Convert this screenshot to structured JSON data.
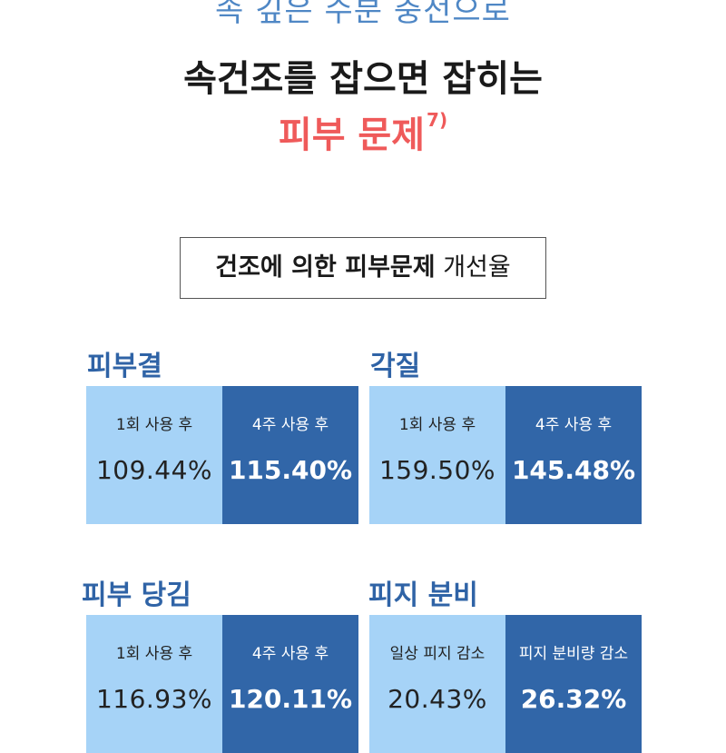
{
  "header": {
    "line1": "속 깊은 수분 충전으로",
    "line2": "속건조를 잡으면 잡히는",
    "line3": "피부 문제",
    "footnote": "7)"
  },
  "rate_box": {
    "bold_text": "건조에 의한 피부문제",
    "normal_text": "개선율"
  },
  "sections": [
    {
      "title": "피부결",
      "cells": [
        {
          "label": "1회 사용 후",
          "value": "109.44%"
        },
        {
          "label": "4주 사용 후",
          "value": "115.40%"
        }
      ]
    },
    {
      "title": "각질",
      "cells": [
        {
          "label": "1회 사용 후",
          "value": "159.50%"
        },
        {
          "label": "4주 사용 후",
          "value": "145.48%"
        }
      ]
    },
    {
      "title": "피부 당김",
      "cells": [
        {
          "label": "1회 사용 후",
          "value": "116.93%"
        },
        {
          "label": "4주 사용 후",
          "value": "120.11%"
        }
      ]
    },
    {
      "title": "피지 분비",
      "cells": [
        {
          "label": "일상 피지 감소",
          "value": "20.43%"
        },
        {
          "label": "피지 분비량 감소",
          "value": "26.32%"
        }
      ]
    }
  ],
  "colors": {
    "headline": "#1a1a1a",
    "accent_red": "#ef5a5a",
    "title_blue": "#2f63a6",
    "cell_light": "#a6d3f7",
    "cell_dark": "#3166a8"
  }
}
